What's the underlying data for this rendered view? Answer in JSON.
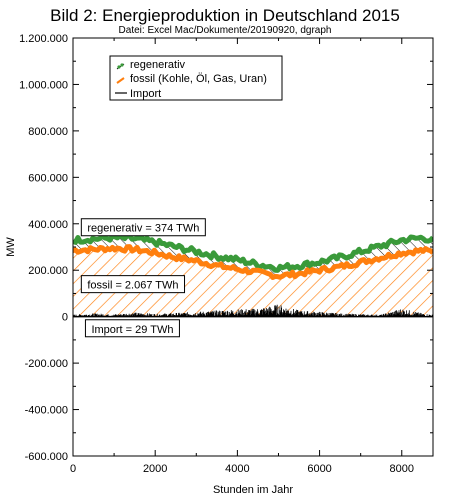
{
  "chart_data": {
    "type": "area",
    "title": "Bild 2: Energieproduktion in Deutschland 2015",
    "subtitle": "Datei: Excel Mac/Dokumente/20190920, dgraph",
    "xlabel": "Stunden im Jahr",
    "ylabel": "MW",
    "xlim": [
      0,
      8760
    ],
    "ylim": [
      -600000,
      1200000
    ],
    "x_ticks": [
      0,
      2000,
      4000,
      6000,
      8000
    ],
    "x_tick_labels": [
      "0",
      "2000",
      "4000",
      "6000",
      "8000"
    ],
    "y_ticks": [
      -600000,
      -400000,
      -200000,
      0,
      200000,
      400000,
      600000,
      800000,
      1000000,
      1200000
    ],
    "y_tick_labels": [
      "-600.000",
      "-400.000",
      "-200.000",
      "0",
      "200.000",
      "400.000",
      "600.000",
      "800.000",
      "1.000.000",
      "1.200.000"
    ],
    "grid": false,
    "legend": "top-left",
    "series": [
      {
        "name": "regenerativ",
        "color": "#3a9a3a",
        "x": [
          0,
          500,
          1000,
          1500,
          2000,
          2500,
          3000,
          3500,
          4000,
          4500,
          5000,
          5500,
          6000,
          6500,
          7000,
          7500,
          8000,
          8500,
          8760
        ],
        "values": [
          330000,
          335000,
          340000,
          335000,
          320000,
          300000,
          280000,
          260000,
          245000,
          225000,
          210000,
          220000,
          235000,
          255000,
          280000,
          305000,
          330000,
          340000,
          330000
        ]
      },
      {
        "name": "fossil (Kohle, Öl, Gas, Uran)",
        "color": "#ff7f0e",
        "x": [
          0,
          500,
          1000,
          1500,
          2000,
          2500,
          3000,
          3500,
          4000,
          4500,
          5000,
          5500,
          6000,
          6500,
          7000,
          7500,
          8000,
          8500,
          8760
        ],
        "values": [
          285000,
          290000,
          295000,
          290000,
          275000,
          255000,
          240000,
          220000,
          205000,
          190000,
          175000,
          185000,
          200000,
          215000,
          235000,
          255000,
          275000,
          285000,
          280000
        ]
      },
      {
        "name": "Import",
        "color": "#000000",
        "x": [
          0,
          500,
          1000,
          1500,
          2000,
          2500,
          3000,
          3500,
          4000,
          4500,
          5000,
          5500,
          6000,
          6500,
          7000,
          7500,
          8000,
          8500,
          8760
        ],
        "values": [
          5000,
          8000,
          6000,
          10000,
          7000,
          9000,
          12000,
          15000,
          18000,
          20000,
          30000,
          15000,
          12000,
          8000,
          6000,
          5000,
          20000,
          8000,
          5000
        ]
      }
    ],
    "annotations": [
      {
        "text": "regenerativ = 374 TWh",
        "x": 300,
        "y": 370000
      },
      {
        "text": "fossil = 2.067 TWh",
        "x": 300,
        "y": 125000
      },
      {
        "text": "Import = 29 TWh",
        "x": 400,
        "y": -65000
      }
    ]
  }
}
